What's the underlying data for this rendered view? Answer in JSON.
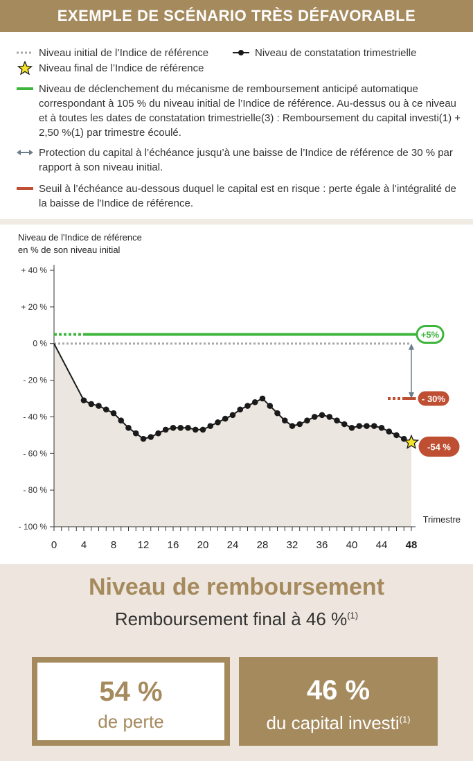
{
  "banner": {
    "title": "EXEMPLE DE SCÉNARIO TRÈS DÉFAVORABLE"
  },
  "legend": {
    "initial": "Niveau initial de l’Indice de référence",
    "observation": "Niveau de constatation trimestrielle",
    "final": "Niveau final de l’Indice de référence",
    "trigger": "Niveau de déclenchement du mécanisme de remboursement anticipé automatique correspondant à 105 % du niveau initial de l’Indice de référence. Au-dessus ou à ce niveau et à toutes les dates de constatation trimestrielle(3) : Remboursement du capital investi(1) + 2,50 %(1) par trimestre écoulé.",
    "protection": "Protection du capital à l’échéance jusqu’à une baisse de l’Indice de référence de 30 % par rapport à son niveau initial.",
    "threshold": "Seuil à l’échéance au-dessous duquel le capital est en risque : perte égale à l’intégralité de la baisse de l'Indice de référence."
  },
  "colors": {
    "brand": "#a58a5e",
    "trigger_green": "#3db53d",
    "initial_gray": "#a8a8a8",
    "threshold_red": "#bf4f32",
    "arrow_gray": "#6b7c8a",
    "series_black": "#1a1a1a",
    "area_fill": "#ece6e0",
    "star_yellow": "#f5e32a"
  },
  "icons": {
    "star": "star-icon",
    "double_arrow": "double-arrow-icon"
  },
  "chart_data": {
    "type": "line",
    "ylabel": "Niveau de l'Indice de référence\nen % de son niveau initial",
    "xlabel": "Trimestre",
    "ylim": [
      -100,
      40
    ],
    "xlim": [
      0,
      48
    ],
    "y_ticks": [
      40,
      20,
      0,
      -20,
      -40,
      -60,
      -80,
      -100
    ],
    "y_tick_labels": [
      "+ 40 %",
      "+ 20 %",
      "0 %",
      "- 20 %",
      "- 40 %",
      "- 60 %",
      "- 80 %",
      "- 100 %"
    ],
    "x_ticks": [
      0,
      4,
      8,
      12,
      16,
      20,
      24,
      28,
      32,
      36,
      40,
      44,
      48
    ],
    "x_tick_labels": [
      "0",
      "4",
      "8",
      "12",
      "16",
      "20",
      "24",
      "28",
      "32",
      "36",
      "40",
      "44",
      "48"
    ],
    "trigger_level": 5,
    "initial_level": 0,
    "protection_level": -30,
    "final_level": -54,
    "labels": {
      "trigger": "+5%",
      "protection": "- 30%",
      "final": "-54 %"
    },
    "series": [
      {
        "x": [
          0,
          4,
          5,
          6,
          7,
          8,
          9,
          10,
          11,
          12,
          13,
          14,
          15,
          16,
          17,
          18,
          19,
          20,
          21,
          22,
          23,
          24,
          25,
          26,
          27,
          28,
          29,
          30,
          31,
          32,
          33,
          34,
          35,
          36,
          37,
          38,
          39,
          40,
          41,
          42,
          43,
          44,
          45,
          46,
          47,
          48
        ],
        "values": [
          0,
          -31,
          -33,
          -34,
          -36,
          -38,
          -42,
          -46,
          -49,
          -52,
          -51,
          -49,
          -47,
          -46,
          -46,
          -46,
          -47,
          -47,
          -45,
          -43,
          -41,
          -39,
          -36,
          -34,
          -32,
          -30,
          -34,
          -38,
          -42,
          -45,
          -44,
          -42,
          -40,
          -39,
          -40,
          -42,
          -44,
          -46,
          -45,
          -45,
          -45,
          -46,
          -48,
          -50,
          -52,
          -54
        ]
      }
    ]
  },
  "result": {
    "title": "Niveau de remboursement",
    "subtitle": "Remboursement final à 46 %",
    "subtitle_sup": "(1)",
    "loss_value": "54 %",
    "loss_label": "de perte",
    "capital_value": "46 %",
    "capital_label": "du capital investi",
    "capital_sup": "(1)"
  }
}
